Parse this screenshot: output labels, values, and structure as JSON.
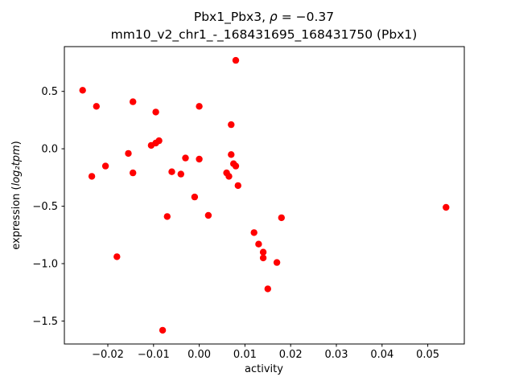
{
  "figure": {
    "title_prefix": "Pbx1_Pbx3, ",
    "title_rho": "ρ",
    "title_rest": " = −0.37",
    "title_line2": "mm10_v2_chr1_-_168431695_168431750 (Pbx1)",
    "xlabel": "activity",
    "ylabel_prefix": "expression (",
    "ylabel_math": "log₂tpm",
    "ylabel_suffix": ")"
  },
  "chart_data": {
    "type": "scatter",
    "title": "Pbx1_Pbx3, ρ = −0.37",
    "subtitle": "mm10_v2_chr1_-_168431695_168431750 (Pbx1)",
    "xlabel": "activity",
    "ylabel": "expression (log2 tpm)",
    "marker_color": "#ff0000",
    "marker_size_px": 4.2,
    "grid": false,
    "legend": "none",
    "xlim": [
      -0.0295,
      0.058
    ],
    "ylim": [
      -1.7,
      0.89
    ],
    "x_ticks": {
      "values": [
        -0.02,
        -0.01,
        0.0,
        0.01,
        0.02,
        0.03,
        0.04,
        0.05
      ],
      "labels": [
        "−0.02",
        "−0.01",
        "0.00",
        "0.01",
        "0.02",
        "0.03",
        "0.04",
        "0.05"
      ]
    },
    "y_ticks": {
      "values": [
        0.5,
        0.0,
        -0.5,
        -1.0,
        -1.5
      ],
      "labels": [
        "0.5",
        "0.0",
        "−0.5",
        "−1.0",
        "−1.5"
      ]
    },
    "points": [
      [
        -0.0255,
        0.51
      ],
      [
        -0.0235,
        -0.24
      ],
      [
        -0.0225,
        0.37
      ],
      [
        -0.0205,
        -0.15
      ],
      [
        -0.018,
        -0.94
      ],
      [
        -0.0155,
        -0.04
      ],
      [
        -0.0145,
        0.41
      ],
      [
        -0.0145,
        -0.21
      ],
      [
        -0.0105,
        0.03
      ],
      [
        -0.0095,
        0.32
      ],
      [
        -0.0095,
        0.05
      ],
      [
        -0.0088,
        0.07
      ],
      [
        -0.008,
        -1.58
      ],
      [
        -0.007,
        -0.59
      ],
      [
        -0.006,
        -0.2
      ],
      [
        -0.004,
        -0.22
      ],
      [
        -0.003,
        -0.08
      ],
      [
        -0.001,
        -0.42
      ],
      [
        0.0,
        0.37
      ],
      [
        0.0,
        -0.09
      ],
      [
        0.002,
        -0.58
      ],
      [
        0.006,
        -0.21
      ],
      [
        0.0065,
        -0.24
      ],
      [
        0.007,
        -0.05
      ],
      [
        0.007,
        0.21
      ],
      [
        0.0075,
        -0.13
      ],
      [
        0.008,
        -0.15
      ],
      [
        0.008,
        0.77
      ],
      [
        0.0085,
        -0.32
      ],
      [
        0.012,
        -0.73
      ],
      [
        0.013,
        -0.83
      ],
      [
        0.014,
        -0.9
      ],
      [
        0.014,
        -0.95
      ],
      [
        0.015,
        -1.22
      ],
      [
        0.017,
        -0.99
      ],
      [
        0.018,
        -0.6
      ],
      [
        0.054,
        -0.51
      ]
    ]
  }
}
